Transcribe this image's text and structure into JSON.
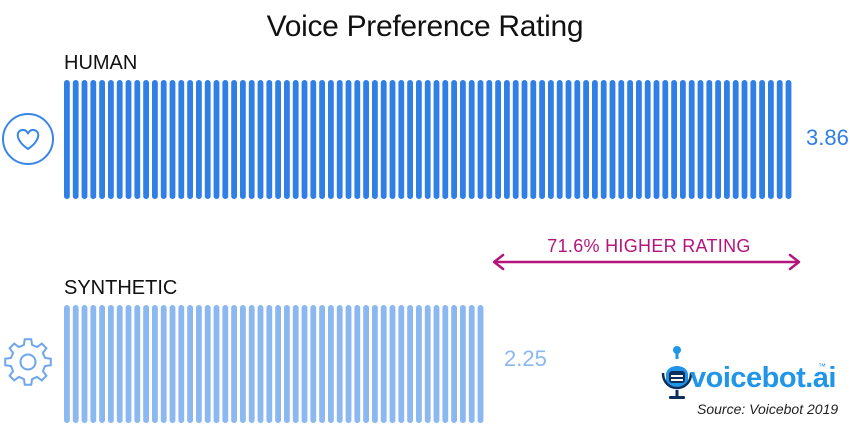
{
  "chart_data": {
    "type": "bar",
    "title": "Voice Preference Rating",
    "categories": [
      "HUMAN",
      "SYNTHETIC"
    ],
    "values": [
      3.86,
      2.25
    ],
    "value_labels": [
      "3.86",
      "2.25"
    ],
    "orientation": "horizontal",
    "annotation": "71.6% HIGHER RATING",
    "source": "Source: Voicebot 2019"
  },
  "colors": {
    "human": "#2f7fe6",
    "synthetic": "#8bb8f0",
    "annotation": "#b3157c",
    "icon": "#2f7fe6"
  },
  "icons": {
    "human": "heart-icon",
    "synthetic": "gear-icon"
  },
  "logo": {
    "name": "voicebot",
    "suffix": ".ai",
    "tm": "™"
  }
}
